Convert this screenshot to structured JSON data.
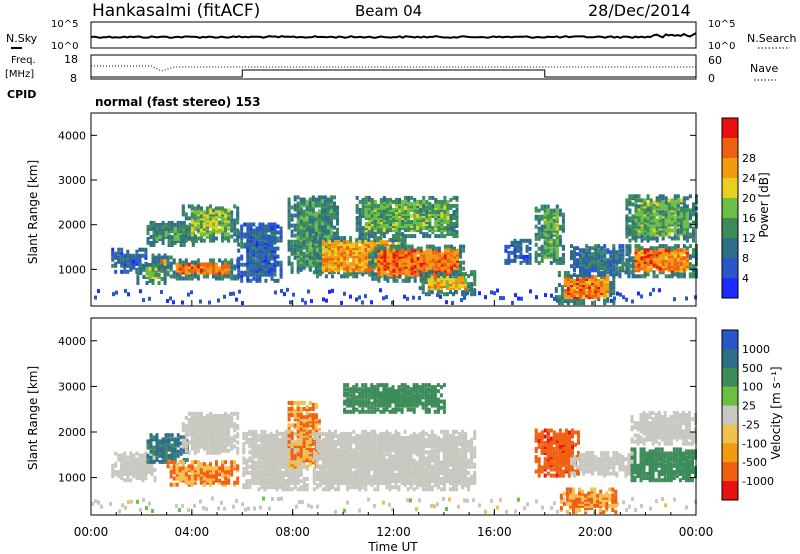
{
  "header": {
    "station": "Hankasalmi (fitACF)",
    "beam": "Beam 04",
    "date": "28/Dec/2014"
  },
  "params": {
    "nsky_label": "N.Sky",
    "nsky_top": "10^5",
    "nsky_bottom": "10^0",
    "nsearch_label": "N.Search",
    "nsearch_top": "10^5",
    "nsearch_bottom": "10^0",
    "freq_label": "Freq.",
    "freq_unit": "[MHz]",
    "freq_top": "18",
    "freq_bottom": "8",
    "nave_label": "Nave",
    "nave_top": "60",
    "nave_bottom": "0",
    "cpid_label": "CPID",
    "cpid_value": "normal (fast stereo) 153"
  },
  "colors": {
    "power": [
      "#1c2bff",
      "#2857c8",
      "#2e6e88",
      "#3c8c5a",
      "#6cbf45",
      "#e8d020",
      "#f29a10",
      "#f06010",
      "#e81010"
    ],
    "velocity": [
      "#e81010",
      "#f06010",
      "#f29a10",
      "#f0c050",
      "#c8c8c0",
      "#6cbf45",
      "#3c8c5a",
      "#2e6e88",
      "#2857c8"
    ]
  },
  "chart_data": [
    {
      "type": "heatmap",
      "panel": "power",
      "xlabel": "",
      "ylabel": "Slant Range [km]",
      "xlim": [
        "00:00",
        "24:00"
      ],
      "ylim": [
        180,
        4500
      ],
      "yticks": [
        1000,
        2000,
        3000,
        4000
      ],
      "colorbar": {
        "label": "Power [dB]",
        "range": [
          0,
          32
        ],
        "ticks": [
          "4",
          "8",
          "12",
          "16",
          "20",
          "24",
          "28"
        ]
      },
      "regions": [
        {
          "start": 0.8,
          "end": 2.2,
          "range_lo": 900,
          "range_hi": 1400,
          "value": 8
        },
        {
          "start": 1.8,
          "end": 3.0,
          "range_lo": 650,
          "range_hi": 1100,
          "value": 18
        },
        {
          "start": 2.2,
          "end": 4.2,
          "range_lo": 1500,
          "range_hi": 2000,
          "value": 14
        },
        {
          "start": 2.4,
          "end": 3.2,
          "range_lo": 950,
          "range_hi": 1300,
          "value": 24
        },
        {
          "start": 3.0,
          "end": 5.8,
          "range_lo": 750,
          "range_hi": 1200,
          "value": 28
        },
        {
          "start": 3.6,
          "end": 5.8,
          "range_lo": 1600,
          "range_hi": 2400,
          "value": 18
        },
        {
          "start": 5.8,
          "end": 7.6,
          "range_lo": 700,
          "range_hi": 2000,
          "value": 8
        },
        {
          "start": 7.8,
          "end": 9.8,
          "range_lo": 900,
          "range_hi": 2600,
          "value": 14
        },
        {
          "start": 8.8,
          "end": 12.5,
          "range_lo": 800,
          "range_hi": 1700,
          "value": 26
        },
        {
          "start": 11.0,
          "end": 14.8,
          "range_lo": 700,
          "range_hi": 1500,
          "value": 29
        },
        {
          "start": 10.5,
          "end": 14.5,
          "range_lo": 1700,
          "range_hi": 2600,
          "value": 16
        },
        {
          "start": 13.0,
          "end": 15.2,
          "range_lo": 400,
          "range_hi": 900,
          "value": 24
        },
        {
          "start": 16.4,
          "end": 17.4,
          "range_lo": 1100,
          "range_hi": 1600,
          "value": 8
        },
        {
          "start": 17.6,
          "end": 18.8,
          "range_lo": 1100,
          "range_hi": 2400,
          "value": 16
        },
        {
          "start": 18.4,
          "end": 20.8,
          "range_lo": 200,
          "range_hi": 900,
          "value": 28
        },
        {
          "start": 19.0,
          "end": 21.4,
          "range_lo": 800,
          "range_hi": 1500,
          "value": 10
        },
        {
          "start": 21.2,
          "end": 24.0,
          "range_lo": 800,
          "range_hi": 1500,
          "value": 28
        },
        {
          "start": 21.2,
          "end": 24.0,
          "range_lo": 1600,
          "range_hi": 2600,
          "value": 16
        }
      ]
    },
    {
      "type": "heatmap",
      "panel": "velocity",
      "xlabel": "Time UT",
      "ylabel": "Slant Range [km]",
      "xticks": [
        "00:00",
        "04:00",
        "08:00",
        "12:00",
        "16:00",
        "20:00",
        "00:00"
      ],
      "ylim": [
        180,
        4500
      ],
      "yticks": [
        1000,
        2000,
        3000,
        4000
      ],
      "colorbar": {
        "label": "Velocity [m s⁻¹]",
        "ticks": [
          "1000",
          "500",
          "100",
          "25",
          "-25",
          "-100",
          "-500",
          "-1000"
        ]
      },
      "regions": [
        {
          "start": 0.8,
          "end": 2.5,
          "range_lo": 900,
          "range_hi": 1500,
          "value": 0
        },
        {
          "start": 2.2,
          "end": 3.8,
          "range_lo": 1300,
          "range_hi": 1900,
          "value": 600
        },
        {
          "start": 3.0,
          "end": 5.8,
          "range_lo": 800,
          "range_hi": 1300,
          "value": -100
        },
        {
          "start": 3.6,
          "end": 5.8,
          "range_lo": 1500,
          "range_hi": 2400,
          "value": 0
        },
        {
          "start": 6.0,
          "end": 8.6,
          "range_lo": 700,
          "range_hi": 2000,
          "value": 0
        },
        {
          "start": 7.8,
          "end": 9.0,
          "range_lo": 1200,
          "range_hi": 2600,
          "value": -100
        },
        {
          "start": 8.8,
          "end": 15.2,
          "range_lo": 700,
          "range_hi": 2000,
          "value": 0
        },
        {
          "start": 10.0,
          "end": 14.0,
          "range_lo": 2400,
          "range_hi": 3000,
          "value": 150
        },
        {
          "start": 17.6,
          "end": 19.4,
          "range_lo": 1000,
          "range_hi": 2000,
          "value": -400
        },
        {
          "start": 18.6,
          "end": 20.8,
          "range_lo": 200,
          "range_hi": 700,
          "value": -100
        },
        {
          "start": 19.0,
          "end": 21.6,
          "range_lo": 1000,
          "range_hi": 1500,
          "value": 0
        },
        {
          "start": 21.4,
          "end": 24.0,
          "range_lo": 900,
          "range_hi": 1600,
          "value": 200
        },
        {
          "start": 21.4,
          "end": 24.0,
          "range_lo": 1700,
          "range_hi": 2400,
          "value": 0
        }
      ]
    }
  ]
}
